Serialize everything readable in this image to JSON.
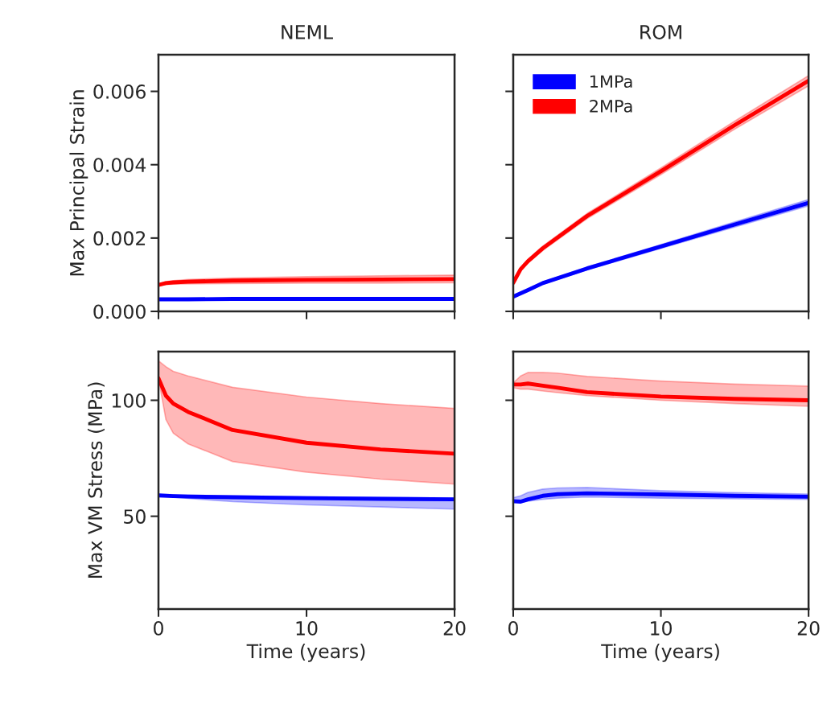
{
  "chart_data": [
    {
      "type": "line",
      "title": "NEML",
      "ylabel": "Max Principal Strain",
      "xlim": [
        0,
        20
      ],
      "xticks": [
        0,
        10,
        20
      ],
      "ylim": [
        0,
        0.007
      ],
      "yticks": [
        {
          "value": 0,
          "label": "0.000"
        },
        0.002,
        0.004,
        0.006
      ],
      "tick_labels": "y",
      "grid": false,
      "legend": false,
      "series": [
        {
          "color": "#0000ff",
          "x": [
            0,
            1,
            2,
            5,
            10,
            15,
            20
          ],
          "values": [
            0.00033,
            0.00033,
            0.00033,
            0.00034,
            0.00034,
            0.00034,
            0.00034
          ],
          "lower": [
            0.00031,
            0.00031,
            0.00031,
            0.00031,
            0.00031,
            0.00031,
            0.00031
          ],
          "upper": [
            0.00035,
            0.00035,
            0.00036,
            0.00036,
            0.00037,
            0.00037,
            0.00037
          ]
        },
        {
          "color": "#ff0000",
          "x": [
            0,
            0.5,
            1,
            2,
            5,
            10,
            15,
            20
          ],
          "values": [
            0.00072,
            0.00077,
            0.00079,
            0.00081,
            0.00084,
            0.00086,
            0.00087,
            0.00088
          ],
          "lower": [
            0.0007,
            0.00073,
            0.00074,
            0.00075,
            0.00076,
            0.00077,
            0.00077,
            0.00078
          ],
          "upper": [
            0.00075,
            0.00081,
            0.00084,
            0.00087,
            0.00091,
            0.00095,
            0.00097,
            0.00099
          ]
        }
      ]
    },
    {
      "type": "line",
      "title": "ROM",
      "xlim": [
        0,
        20
      ],
      "xticks": [
        0,
        10,
        20
      ],
      "ylim": [
        0,
        0.007
      ],
      "yticks": [
        0,
        0.002,
        0.004,
        0.006
      ],
      "tick_labels": false,
      "grid": false,
      "legend": "top left",
      "series": [
        {
          "name": "1MPa",
          "color": "#0000ff",
          "x": [
            0,
            1,
            2,
            5,
            10,
            15,
            20
          ],
          "values": [
            0.0004,
            0.00058,
            0.00077,
            0.00117,
            0.00177,
            0.00237,
            0.00296
          ],
          "lower": [
            0.00038,
            0.00055,
            0.00074,
            0.00113,
            0.00172,
            0.0023,
            0.00288
          ],
          "upper": [
            0.00042,
            0.00061,
            0.0008,
            0.00121,
            0.00182,
            0.00244,
            0.00305
          ]
        },
        {
          "name": "2MPa",
          "color": "#ff0000",
          "x": [
            0,
            0.5,
            1,
            2,
            5,
            10,
            15,
            20
          ],
          "values": [
            0.00078,
            0.00115,
            0.00137,
            0.00172,
            0.0026,
            0.00382,
            0.00508,
            0.00629
          ],
          "lower": [
            0.00075,
            0.00111,
            0.00132,
            0.00166,
            0.00253,
            0.00373,
            0.00497,
            0.00615
          ],
          "upper": [
            0.00081,
            0.00119,
            0.00142,
            0.00178,
            0.00267,
            0.00391,
            0.00519,
            0.00643
          ]
        }
      ]
    },
    {
      "type": "line",
      "ylabel": "Max VM Stress (MPa)",
      "xlabel": "Time (years)",
      "xlim": [
        0,
        20
      ],
      "xticks": [
        0,
        10,
        20
      ],
      "ylim": [
        10,
        121
      ],
      "yticks": [
        50,
        100
      ],
      "grid": false,
      "legend": false,
      "series": [
        {
          "color": "#0000ff",
          "x": [
            0,
            1,
            2,
            5,
            10,
            15,
            20
          ],
          "values": [
            59,
            58.7,
            58.5,
            58.2,
            57.8,
            57.5,
            57.3
          ],
          "lower": [
            59,
            58.2,
            57.7,
            56.3,
            54.9,
            54,
            53.1
          ],
          "upper": [
            59.5,
            59.3,
            59.1,
            58.8,
            58.4,
            58.1,
            57.9
          ]
        },
        {
          "color": "#ff0000",
          "x": [
            0,
            0.5,
            1,
            2,
            5,
            10,
            15,
            20
          ],
          "values": [
            109.5,
            102,
            98.6,
            95,
            87.2,
            81.7,
            78.8,
            77
          ],
          "lower": [
            109.5,
            91.7,
            85.8,
            81.2,
            73.6,
            69,
            66,
            63.9
          ],
          "upper": [
            117,
            114.5,
            112.5,
            110.5,
            105.6,
            101.4,
            98.6,
            96.5
          ]
        }
      ]
    },
    {
      "type": "line",
      "xlabel": "Time (years)",
      "xlim": [
        0,
        20
      ],
      "xticks": [
        0,
        10,
        20
      ],
      "ylim": [
        10,
        121
      ],
      "yticks": [
        50,
        100
      ],
      "tick_labels": "x",
      "grid": false,
      "legend": false,
      "series": [
        {
          "color": "#0000ff",
          "x": [
            0,
            0.5,
            1,
            2,
            3,
            5,
            10,
            15,
            20
          ],
          "values": [
            56.5,
            56.3,
            57.3,
            58.8,
            59.5,
            59.9,
            59.4,
            58.8,
            58.4
          ],
          "lower": [
            55.8,
            55.9,
            56.5,
            57.3,
            57.8,
            58.3,
            57.8,
            57.5,
            57.3
          ],
          "upper": [
            58,
            58.8,
            60.3,
            61.7,
            62.2,
            62.4,
            61,
            60.2,
            59.6
          ]
        },
        {
          "color": "#ff0000",
          "x": [
            0,
            0.5,
            1,
            2,
            3,
            5,
            10,
            15,
            20
          ],
          "values": [
            106.8,
            106.8,
            107.2,
            106.3,
            105.4,
            103.5,
            101.6,
            100.6,
            100
          ],
          "lower": [
            105.4,
            104.8,
            104.8,
            104,
            103.3,
            102,
            100,
            98.6,
            97.4
          ],
          "upper": [
            107.5,
            110.5,
            112,
            112,
            111.7,
            110.3,
            108.3,
            107,
            106.1
          ]
        }
      ]
    }
  ]
}
